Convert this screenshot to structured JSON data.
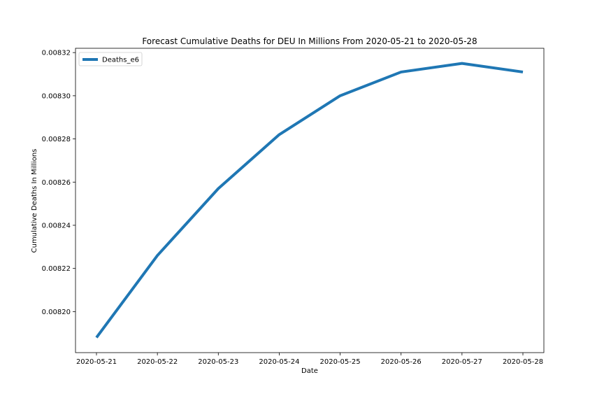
{
  "chart_data": {
    "type": "line",
    "title": "Forecast Cumulative Deaths for DEU In Millions From 2020-05-21 to 2020-05-28",
    "xlabel": "Date",
    "ylabel": "Cumulative Deaths In Millions",
    "x": [
      "2020-05-21",
      "2020-05-22",
      "2020-05-23",
      "2020-05-24",
      "2020-05-25",
      "2020-05-26",
      "2020-05-27",
      "2020-05-28"
    ],
    "series": [
      {
        "name": "Deaths_e6",
        "color": "#1f77b4",
        "values": [
          0.008188,
          0.008226,
          0.008257,
          0.008282,
          0.0083,
          0.008311,
          0.008315,
          0.008311
        ]
      }
    ],
    "ylim": [
      0.008181,
      0.008322
    ],
    "yticks": [
      0.0082,
      0.00822,
      0.00824,
      0.00826,
      0.00828,
      0.0083,
      0.00832
    ],
    "ytick_labels": [
      "0.00820",
      "0.00822",
      "0.00824",
      "0.00826",
      "0.00828",
      "0.00830",
      "0.00832"
    ],
    "grid": false,
    "legend": "upper-left"
  }
}
